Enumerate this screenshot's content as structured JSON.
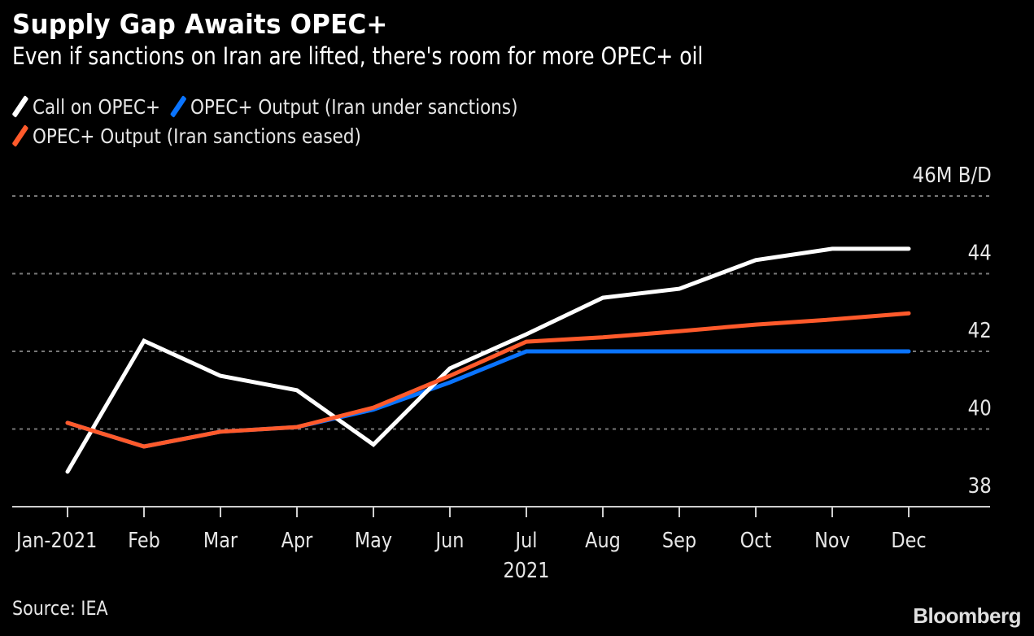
{
  "title": "Supply Gap Awaits OPEC+",
  "subtitle": "Even if sanctions on Iran are lifted, there's room for more OPEC+ oil",
  "legend": [
    {
      "label": "Call on OPEC+",
      "color": "#ffffff"
    },
    {
      "label": "OPEC+ Output (Iran under sanctions)",
      "color": "#0a74ff"
    },
    {
      "label": "OPEC+ Output (Iran sanctions eased)",
      "color": "#ff5a2b"
    }
  ],
  "source": "Source: IEA",
  "brand": "Bloomberg",
  "chart_data": {
    "type": "line",
    "title": "Supply Gap Awaits OPEC+",
    "subtitle": "Even if sanctions on Iran are lifted, there's room for more OPEC+ oil",
    "xlabel": "2021",
    "ylabel": "M B/D",
    "x": [
      "Jan-2021",
      "Feb",
      "Mar",
      "Apr",
      "May",
      "Jun",
      "Jul",
      "Aug",
      "Sep",
      "Oct",
      "Nov",
      "Dec"
    ],
    "ylim": [
      38,
      46
    ],
    "yticks": [
      38,
      40,
      42,
      44,
      46
    ],
    "ytick_labels": [
      "38",
      "40",
      "42",
      "44",
      "46M B/D"
    ],
    "y_axis_side": "right",
    "grid": true,
    "legend_position": "top-left",
    "series": [
      {
        "name": "Call on OPEC+",
        "color": "#ffffff",
        "values": [
          38.9,
          42.27,
          41.37,
          41.0,
          39.6,
          41.56,
          42.44,
          43.38,
          43.61,
          44.35,
          44.64,
          44.64
        ]
      },
      {
        "name": "OPEC+ Output (Iran under sanctions)",
        "color": "#0a74ff",
        "values": [
          40.16,
          39.55,
          39.93,
          40.05,
          40.5,
          41.2,
          42.0,
          42.0,
          42.0,
          42.0,
          42.0,
          42.0
        ]
      },
      {
        "name": "OPEC+ Output (Iran sanctions eased)",
        "color": "#ff5a2b",
        "values": [
          40.16,
          39.55,
          39.93,
          40.05,
          40.55,
          41.37,
          42.25,
          42.36,
          42.52,
          42.69,
          42.82,
          42.98
        ]
      }
    ]
  }
}
